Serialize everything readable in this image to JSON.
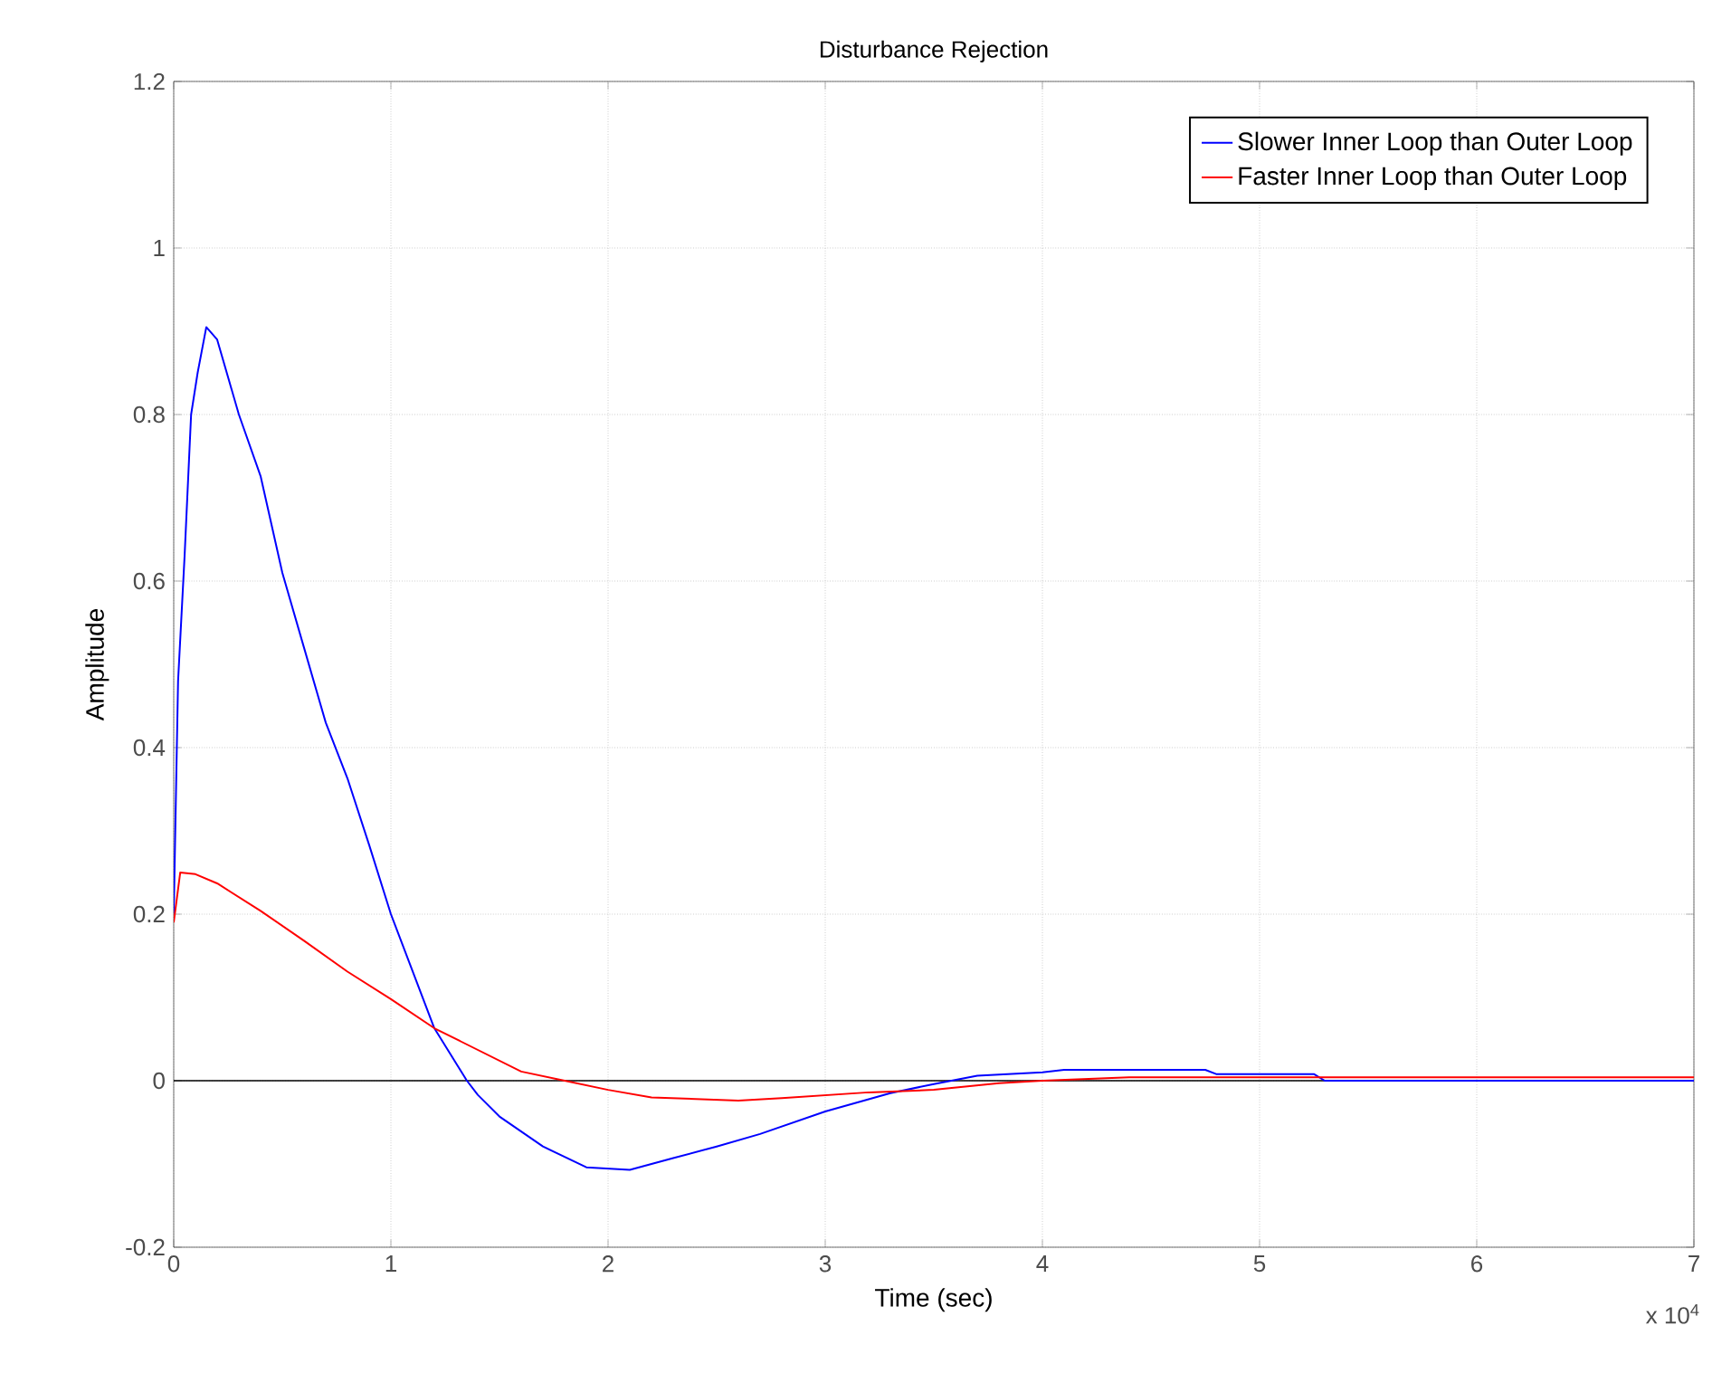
{
  "chart_data": {
    "type": "line",
    "title": "Disturbance Rejection",
    "xlabel": "Time (sec)",
    "ylabel": "Amplitude",
    "xlim": [
      0,
      7
    ],
    "ylim": [
      -0.2,
      1.2
    ],
    "xticks": [
      0,
      1,
      2,
      3,
      4,
      5,
      6,
      7
    ],
    "yticks": [
      -0.2,
      0,
      0.2,
      0.4,
      0.6,
      0.8,
      1,
      1.2
    ],
    "grid": true,
    "legend": "top right",
    "marker": "none",
    "line_style": "solid",
    "ref_lines": [
      {
        "axis": "y",
        "value": 0,
        "color": "#000000"
      }
    ],
    "annotations": [
      "x 10$^{4}$"
    ],
    "series": [
      {
        "name": "Slower Inner Loop than Outer Loop",
        "color": "#0000ff",
        "x": [
          0,
          0.02,
          0.05,
          0.08,
          0.11,
          0.15,
          0.2,
          0.3,
          0.4,
          0.5,
          0.6,
          0.7,
          0.8,
          0.9,
          1,
          1.2,
          1.35,
          1.4,
          1.5,
          1.7,
          1.9,
          2.1,
          2.3,
          2.5,
          2.7,
          3,
          3.3,
          3.5,
          3.7,
          4,
          4.1,
          4.75,
          4.8,
          5.25,
          5.3,
          7
        ],
        "values": [
          0.2,
          0.48,
          0.63,
          0.8,
          0.85,
          0.905,
          0.89,
          0.8,
          0.726,
          0.61,
          0.52,
          0.43,
          0.363,
          0.283,
          0.2,
          0.063,
          0,
          -0.017,
          -0.043,
          -0.079,
          -0.104,
          -0.107,
          -0.093,
          -0.079,
          -0.064,
          -0.037,
          -0.015,
          -0.004,
          0.006,
          0.01,
          0.013,
          0.013,
          0.008,
          0.008,
          0,
          0
        ]
      },
      {
        "name": "Faster Inner Loop than Outer Loop",
        "color": "#ff0000",
        "x": [
          0,
          0.03,
          0.1,
          0.2,
          0.4,
          0.6,
          0.8,
          1,
          1.2,
          1.4,
          1.6,
          1.8,
          2,
          2.2,
          2.6,
          2.8,
          3.2,
          3.5,
          3.8,
          4,
          4.4,
          7
        ],
        "values": [
          0.19,
          0.25,
          0.248,
          0.237,
          0.204,
          0.168,
          0.131,
          0.098,
          0.063,
          0.037,
          0.011,
          0,
          -0.011,
          -0.02,
          -0.024,
          -0.021,
          -0.014,
          -0.011,
          -0.003,
          0,
          0.004,
          0.004
        ]
      }
    ]
  }
}
